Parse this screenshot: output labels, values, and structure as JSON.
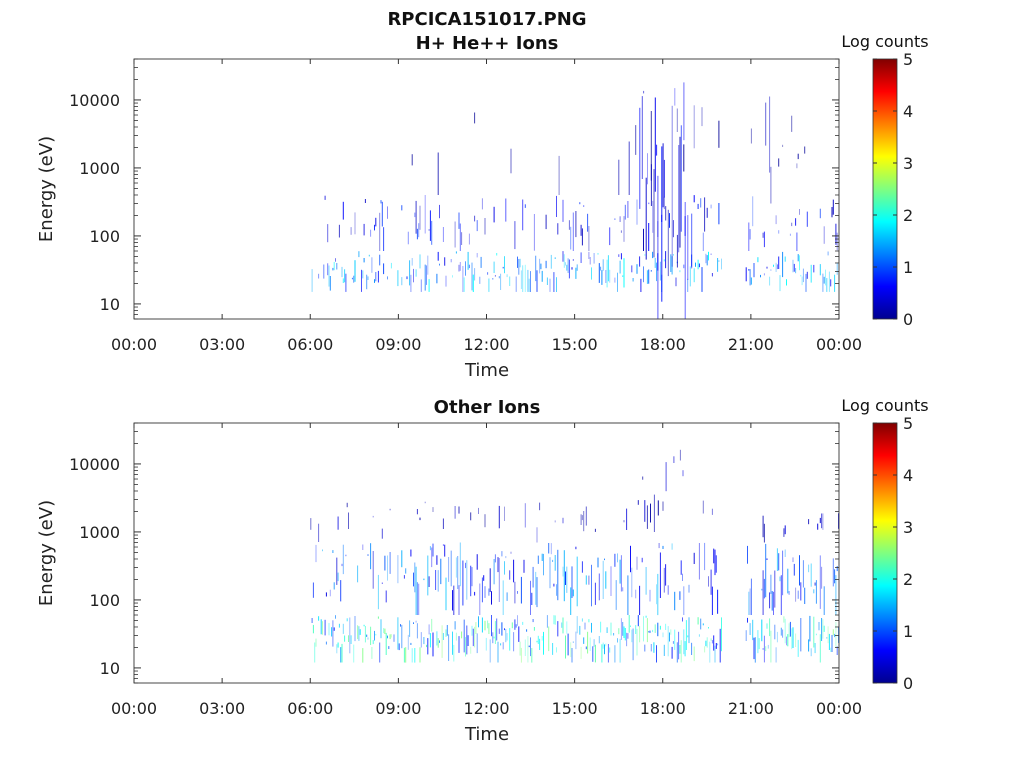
{
  "figure_title": "RPCICA151017.PNG",
  "colorbar": {
    "label": "Log counts",
    "ticks": [
      "0",
      "1",
      "2",
      "3",
      "4",
      "5"
    ],
    "range": [
      0,
      5
    ],
    "colormap": "jet"
  },
  "chart_data": [
    {
      "type": "heatmap",
      "title": "H+ He++ Ions",
      "xlabel": "Time",
      "ylabel": "Energy (eV)",
      "x_ticks": [
        "00:00",
        "03:00",
        "06:00",
        "09:00",
        "12:00",
        "15:00",
        "18:00",
        "21:00",
        "00:00"
      ],
      "x_range_hours": [
        0,
        24
      ],
      "y_ticks": [
        "10",
        "100",
        "1000",
        "10000"
      ],
      "y_scale": "log",
      "y_range": [
        6,
        40000
      ],
      "data_gaps_hours": [
        [
          0,
          6
        ],
        [
          20,
          20.8
        ]
      ],
      "regions": [
        {
          "t": [
            6.0,
            24.0
          ],
          "e": [
            15,
            60
          ],
          "level": 1.2,
          "density": 0.55
        },
        {
          "t": [
            6.0,
            24.0
          ],
          "e": [
            60,
            400
          ],
          "level": 0.6,
          "density": 0.25
        },
        {
          "t": [
            6.0,
            24.0
          ],
          "e": [
            400,
            15000
          ],
          "level": 0.2,
          "density": 0.06
        },
        {
          "t": [
            17.2,
            19.0
          ],
          "e": [
            6,
            20000
          ],
          "level": 0.5,
          "density": 0.55
        },
        {
          "t": [
            21.0,
            23.8
          ],
          "e": [
            300,
            12000
          ],
          "level": 0.25,
          "density": 0.14
        }
      ]
    },
    {
      "type": "heatmap",
      "title": "Other Ions",
      "xlabel": "Time",
      "ylabel": "Energy (eV)",
      "x_ticks": [
        "00:00",
        "03:00",
        "06:00",
        "09:00",
        "12:00",
        "15:00",
        "18:00",
        "21:00",
        "00:00"
      ],
      "x_range_hours": [
        0,
        24
      ],
      "y_ticks": [
        "10",
        "100",
        "1000",
        "10000"
      ],
      "y_scale": "log",
      "y_range": [
        6,
        40000
      ],
      "data_gaps_hours": [
        [
          0,
          6
        ],
        [
          20,
          20.8
        ]
      ],
      "regions": [
        {
          "t": [
            6.0,
            24.0
          ],
          "e": [
            12,
            60
          ],
          "level": 1.6,
          "density": 0.75
        },
        {
          "t": [
            6.0,
            24.0
          ],
          "e": [
            60,
            700
          ],
          "level": 1.0,
          "density": 0.5
        },
        {
          "t": [
            6.0,
            24.0
          ],
          "e": [
            700,
            3000
          ],
          "level": 0.3,
          "density": 0.1
        },
        {
          "t": [
            17.3,
            18.8
          ],
          "e": [
            1000,
            20000
          ],
          "level": 0.3,
          "density": 0.25
        }
      ]
    }
  ]
}
